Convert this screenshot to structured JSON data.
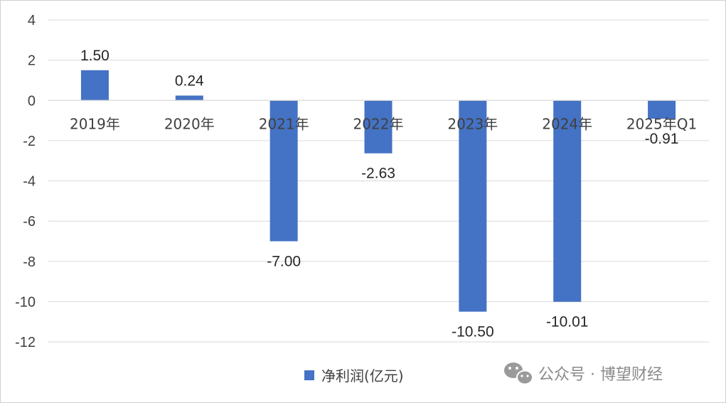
{
  "chart_data": {
    "type": "bar",
    "categories": [
      "2019年",
      "2020年",
      "2021年",
      "2022年",
      "2023年",
      "2024年",
      "2025年Q1"
    ],
    "series": [
      {
        "name": "净利润(亿元)",
        "values": [
          1.5,
          0.24,
          -7.0,
          -2.63,
          -10.5,
          -10.01,
          -0.91
        ],
        "labels": [
          "1.50",
          "0.24",
          "-7.00",
          "-2.63",
          "-10.50",
          "-10.01",
          "-0.91"
        ],
        "color": "#4472C4"
      }
    ],
    "yticks": [
      4,
      2,
      0,
      -2,
      -4,
      -6,
      -8,
      -10,
      -12
    ],
    "ylim": [
      -12,
      4
    ],
    "grid": true,
    "legend": "bottom-center"
  },
  "watermark": {
    "text": "公众号 · 博望财经",
    "icon": "wechat-icon"
  }
}
